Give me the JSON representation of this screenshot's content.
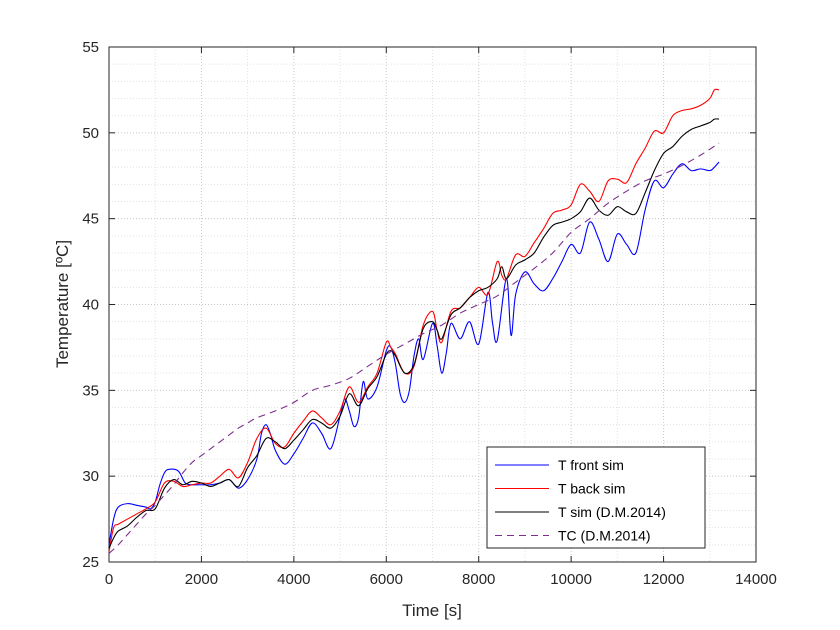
{
  "chart_data": {
    "type": "line",
    "xlabel": "Time [s]",
    "ylabel": "Temperature [ºC]",
    "xlim": [
      0,
      14000
    ],
    "ylim": [
      25,
      55
    ],
    "xticks": [
      "0",
      "2000",
      "4000",
      "6000",
      "8000",
      "10000",
      "12000",
      "14000"
    ],
    "yticks": [
      "25",
      "30",
      "35",
      "40",
      "45",
      "50",
      "55"
    ],
    "grid": "minor dotted",
    "legend_position": "bottom-right",
    "series": [
      {
        "name": "T front sim",
        "color": "#0000ff",
        "style": "solid",
        "x": [
          0,
          100,
          200,
          400,
          600,
          800,
          900,
          1000,
          1100,
          1200,
          1300,
          1500,
          1650,
          1800,
          2000,
          2200,
          2400,
          2600,
          2800,
          3000,
          3200,
          3300,
          3400,
          3500,
          3600,
          3800,
          4000,
          4200,
          4400,
          4600,
          4800,
          5000,
          5100,
          5200,
          5300,
          5400,
          5500,
          5600,
          5800,
          6000,
          6100,
          6200,
          6300,
          6400,
          6500,
          6600,
          6700,
          6800,
          7000,
          7100,
          7200,
          7300,
          7400,
          7600,
          7800,
          8000,
          8200,
          8300,
          8400,
          8600,
          8700,
          8800,
          9000,
          9200,
          9400,
          9600,
          9800,
          10000,
          10200,
          10400,
          10600,
          10800,
          11000,
          11200,
          11400,
          11600,
          11800,
          12000,
          12200,
          12400,
          12600,
          12800,
          13000,
          13100,
          13200
        ],
        "values": [
          26,
          27.5,
          28.2,
          28.4,
          28.3,
          28.2,
          28.1,
          28.5,
          29.5,
          30.2,
          30.4,
          30.3,
          29.6,
          29.5,
          29.5,
          29.5,
          29.6,
          29.8,
          29.3,
          29.8,
          31.0,
          32.5,
          33.0,
          32.4,
          31.5,
          30.7,
          31.3,
          32.2,
          33.1,
          32.5,
          31.6,
          33.5,
          34.5,
          33.8,
          32.9,
          33.4,
          35.5,
          34.5,
          35.2,
          37.3,
          37.5,
          36.5,
          34.8,
          34.3,
          35.0,
          37.0,
          38.0,
          36.8,
          38.9,
          37.6,
          36.0,
          37.2,
          38.9,
          38.0,
          39.0,
          37.7,
          40.7,
          38.9,
          37.9,
          41.5,
          38.2,
          40.6,
          41.9,
          41.2,
          40.8,
          41.5,
          42.5,
          43.5,
          43.0,
          44.8,
          43.8,
          42.5,
          44.1,
          43.5,
          43.0,
          45.5,
          47.2,
          46.8,
          47.6,
          48.2,
          47.8,
          47.9,
          47.8,
          48.0,
          48.3
        ]
      },
      {
        "name": "T back sim",
        "color": "#ff0000",
        "style": "solid",
        "x": [
          0,
          100,
          200,
          400,
          600,
          800,
          1000,
          1200,
          1400,
          1600,
          1800,
          2000,
          2200,
          2400,
          2600,
          2800,
          3000,
          3200,
          3400,
          3600,
          3800,
          4000,
          4200,
          4400,
          4600,
          4800,
          5000,
          5200,
          5400,
          5600,
          5800,
          6000,
          6100,
          6200,
          6400,
          6600,
          6800,
          7000,
          7100,
          7200,
          7400,
          7600,
          7800,
          8000,
          8200,
          8400,
          8500,
          8600,
          8800,
          9000,
          9200,
          9400,
          9600,
          9800,
          10000,
          10200,
          10400,
          10600,
          10800,
          11000,
          11200,
          11400,
          11600,
          11800,
          12000,
          12200,
          12400,
          12600,
          12800,
          13000,
          13100,
          13200
        ],
        "values": [
          25.6,
          27.0,
          27.2,
          27.5,
          27.8,
          28.1,
          28.5,
          29.6,
          29.7,
          29.4,
          29.5,
          29.6,
          29.6,
          30.0,
          30.4,
          29.9,
          30.8,
          32.2,
          32.8,
          31.9,
          31.7,
          32.5,
          33.2,
          33.8,
          33.4,
          33.0,
          33.8,
          35.2,
          34.3,
          35.2,
          36.0,
          37.8,
          37.5,
          37.1,
          36.0,
          36.4,
          38.8,
          39.6,
          38.5,
          37.8,
          39.6,
          39.8,
          40.4,
          41.0,
          40.6,
          42.5,
          41.7,
          41.5,
          42.9,
          42.8,
          43.6,
          44.4,
          45.3,
          45.5,
          45.8,
          47.0,
          46.6,
          46.0,
          47.2,
          47.3,
          47.1,
          48.2,
          49.1,
          50.1,
          50.0,
          51.0,
          51.3,
          51.4,
          51.6,
          52.0,
          52.5,
          52.5
        ]
      },
      {
        "name": "T sim (D.M.2014)",
        "color": "#000000",
        "style": "solid",
        "x": [
          0,
          100,
          200,
          400,
          600,
          800,
          1000,
          1200,
          1400,
          1600,
          1800,
          2000,
          2200,
          2400,
          2600,
          2800,
          3000,
          3200,
          3400,
          3600,
          3800,
          4000,
          4200,
          4400,
          4600,
          4800,
          5000,
          5200,
          5400,
          5600,
          5800,
          6000,
          6100,
          6200,
          6400,
          6600,
          6800,
          7000,
          7100,
          7200,
          7400,
          7600,
          7800,
          8000,
          8200,
          8400,
          8500,
          8600,
          8800,
          9000,
          9200,
          9400,
          9600,
          9800,
          10000,
          10200,
          10400,
          10600,
          10800,
          11000,
          11200,
          11400,
          11600,
          11800,
          12000,
          12200,
          12400,
          12600,
          12800,
          13000,
          13100,
          13200
        ],
        "values": [
          25.8,
          26.4,
          26.8,
          27.1,
          27.6,
          28.0,
          28.1,
          29.3,
          29.8,
          29.5,
          29.7,
          29.6,
          29.4,
          29.6,
          29.8,
          29.4,
          30.5,
          31.2,
          32.2,
          32.0,
          31.6,
          32.1,
          32.7,
          33.3,
          33.1,
          32.8,
          33.5,
          34.8,
          34.1,
          35.1,
          35.8,
          37.1,
          37.3,
          37.0,
          36.0,
          36.5,
          38.6,
          39.0,
          38.5,
          38.0,
          39.4,
          39.8,
          40.4,
          40.8,
          41.0,
          41.5,
          42.2,
          41.5,
          42.3,
          42.6,
          43.0,
          43.9,
          44.6,
          44.8,
          45.0,
          45.4,
          46.2,
          45.5,
          45.2,
          45.7,
          45.4,
          45.3,
          46.5,
          47.8,
          48.8,
          49.2,
          49.8,
          50.2,
          50.4,
          50.6,
          50.8,
          50.8
        ]
      },
      {
        "name": "TC (D.M.2014)",
        "color": "#7e2f8e",
        "style": "dashed",
        "x": [
          0,
          200,
          400,
          600,
          800,
          1000,
          1200,
          1400,
          1600,
          1800,
          2000,
          2200,
          2400,
          2600,
          2800,
          3000,
          3200,
          3600,
          4000,
          4400,
          4800,
          5200,
          5600,
          6000,
          6400,
          6800,
          7200,
          7600,
          8000,
          8400,
          8800,
          9200,
          9600,
          10000,
          10400,
          10800,
          11200,
          11600,
          12000,
          12400,
          12800,
          13200
        ],
        "values": [
          25.5,
          26.0,
          26.6,
          27.2,
          27.8,
          28.3,
          28.9,
          29.5,
          30.2,
          30.8,
          31.2,
          31.6,
          32.0,
          32.4,
          32.8,
          33.1,
          33.4,
          33.8,
          34.3,
          35.0,
          35.3,
          35.7,
          36.4,
          37.1,
          37.7,
          38.3,
          38.8,
          39.5,
          40.0,
          40.5,
          41.3,
          42.1,
          43.0,
          44.2,
          45.0,
          45.9,
          46.6,
          47.2,
          47.6,
          48.1,
          48.7,
          49.4
        ]
      }
    ]
  }
}
